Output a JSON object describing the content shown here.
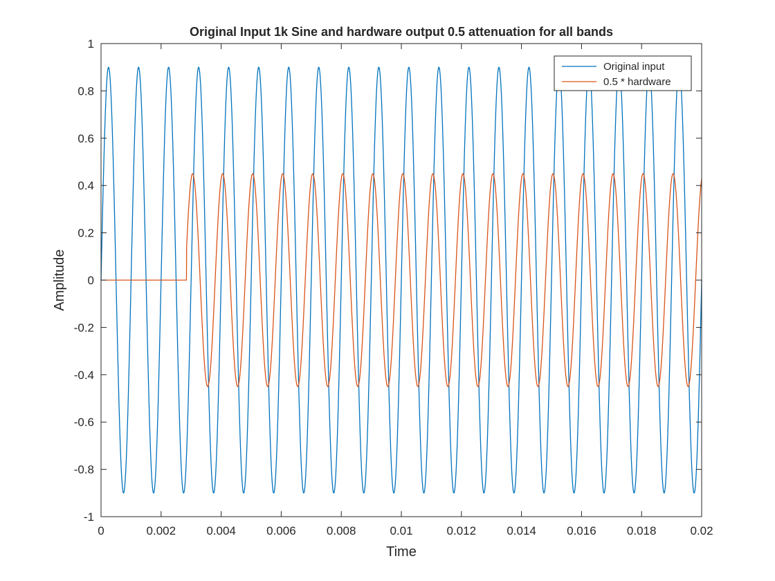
{
  "chart_data": {
    "type": "line",
    "title": "Original Input 1k Sine and hardware output 0.5 attenuation for all bands",
    "xlabel": "Time",
    "ylabel": "Amplitude",
    "xlim": [
      0,
      0.02
    ],
    "ylim": [
      -1,
      1
    ],
    "xticks": [
      0,
      0.002,
      0.004,
      0.006,
      0.008,
      0.01,
      0.012,
      0.014,
      0.016,
      0.018,
      0.02
    ],
    "xtick_labels": [
      "0",
      "0.002",
      "0.004",
      "0.006",
      "0.008",
      "0.01",
      "0.012",
      "0.014",
      "0.016",
      "0.018",
      "0.02"
    ],
    "yticks": [
      -1,
      -0.8,
      -0.6,
      -0.4,
      -0.2,
      0,
      0.2,
      0.4,
      0.6,
      0.8,
      1
    ],
    "ytick_labels": [
      "-1",
      "-0.8",
      "-0.6",
      "-0.4",
      "-0.2",
      "0",
      "0.2",
      "0.4",
      "0.6",
      "0.8",
      "1"
    ],
    "grid": false,
    "legend_position": "top-right",
    "series": [
      {
        "name": "Original input",
        "color": "#0072BD",
        "waveform": "sine",
        "frequency_hz": 1000,
        "amplitude": 0.9,
        "start_time": 0,
        "baseline_before_start": 0
      },
      {
        "name": "0.5 * hardware",
        "color": "#D95319",
        "waveform": "sine",
        "frequency_hz": 1000,
        "amplitude": 0.45,
        "start_time": 0.00285,
        "phase_reference_time": 0.0028,
        "baseline_before_start": 0
      }
    ]
  }
}
